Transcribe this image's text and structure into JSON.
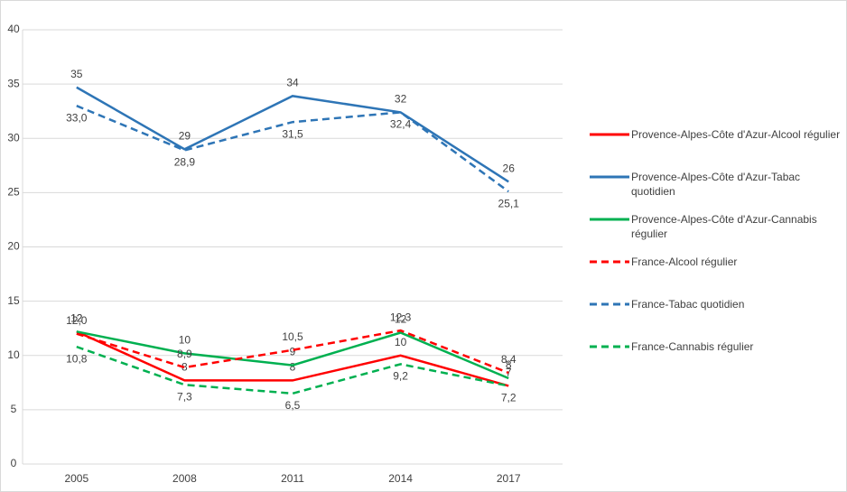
{
  "chart_data": {
    "type": "line",
    "categories": [
      "2005",
      "2008",
      "2011",
      "2014",
      "2017"
    ],
    "ylim": [
      0,
      40
    ],
    "yticks": [
      0,
      5,
      10,
      15,
      20,
      25,
      30,
      35,
      40
    ],
    "grid": true,
    "series": [
      {
        "name": "Provence-Alpes-Côte d'Azur-Alcool régulier",
        "color": "#ff0000",
        "dashed": false,
        "values": [
          12.2,
          7.7,
          7.7,
          10,
          7.2
        ],
        "value_labels": [
          "12",
          "8",
          "8",
          "10",
          "7"
        ]
      },
      {
        "name": "Provence-Alpes-Côte d'Azur-Tabac quotidien",
        "color": "#2e75b6",
        "dashed": false,
        "values": [
          34.7,
          29,
          33.9,
          32.4,
          26
        ],
        "value_labels": [
          "35",
          "29",
          "34",
          "32",
          "26"
        ]
      },
      {
        "name": "Provence-Alpes-Côte d'Azur-Cannabis régulier",
        "color": "#00b050",
        "dashed": false,
        "values": [
          12.2,
          10.2,
          9.1,
          12.1,
          7.9
        ],
        "value_labels": [
          "12",
          "10",
          "9",
          "12",
          "8"
        ]
      },
      {
        "name": "France-Alcool régulier",
        "color": "#ff0000",
        "dashed": true,
        "values": [
          12.0,
          8.9,
          10.5,
          12.3,
          8.4
        ],
        "value_labels": [
          "12,0",
          "8,9",
          "10,5",
          "12,3",
          "8,4"
        ]
      },
      {
        "name": "France-Tabac quotidien",
        "color": "#2e75b6",
        "dashed": true,
        "values": [
          33.0,
          28.9,
          31.5,
          32.4,
          25.1
        ],
        "value_labels": [
          "33,0",
          "28,9",
          "31,5",
          "32,4",
          "25,1"
        ]
      },
      {
        "name": "France-Cannabis régulier",
        "color": "#00b050",
        "dashed": true,
        "values": [
          10.8,
          7.3,
          6.5,
          9.2,
          7.2
        ],
        "value_labels": [
          "10,8",
          "7,3",
          "6,5",
          "9,2",
          "7,2"
        ]
      }
    ]
  }
}
